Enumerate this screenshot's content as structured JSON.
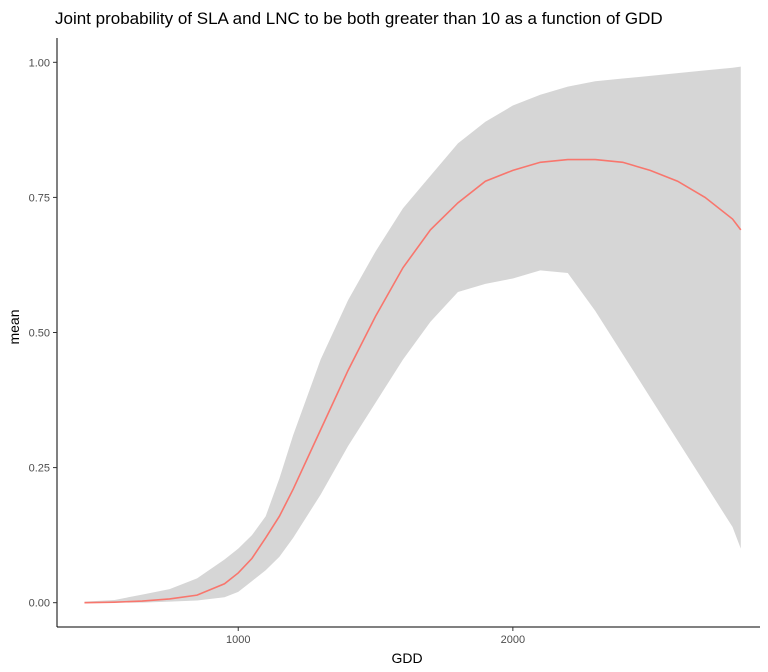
{
  "chart_data": {
    "type": "line",
    "title": "Joint probability of SLA and LNC to be both greater than 10 as a function of GDD",
    "xlabel": "GDD",
    "ylabel": "mean",
    "xlim": [
      340,
      2900
    ],
    "ylim": [
      -0.045,
      1.045
    ],
    "x_ticks": [
      1000,
      2000
    ],
    "x_tick_labels": [
      "1000",
      "2000"
    ],
    "y_ticks": [
      0,
      0.25,
      0.5,
      0.75,
      1.0
    ],
    "y_tick_labels": [
      "0.00",
      "0.25",
      "0.50",
      "0.75",
      "1.00"
    ],
    "grid": false,
    "legend": "none",
    "series": [
      {
        "x": [
          440,
          550,
          650,
          750,
          850,
          950,
          1000,
          1050,
          1100,
          1150,
          1200,
          1300,
          1400,
          1500,
          1600,
          1700,
          1800,
          1900,
          2000,
          2100,
          2200,
          2300,
          2400,
          2500,
          2600,
          2700,
          2800,
          2830
        ],
        "mean": [
          0.0,
          0.001,
          0.003,
          0.007,
          0.014,
          0.035,
          0.055,
          0.082,
          0.12,
          0.16,
          0.21,
          0.32,
          0.43,
          0.53,
          0.62,
          0.69,
          0.74,
          0.78,
          0.8,
          0.815,
          0.82,
          0.82,
          0.815,
          0.8,
          0.78,
          0.75,
          0.71,
          0.69
        ],
        "lower": [
          0.0,
          0.0,
          0.0,
          0.002,
          0.004,
          0.01,
          0.02,
          0.04,
          0.06,
          0.085,
          0.12,
          0.2,
          0.29,
          0.37,
          0.45,
          0.52,
          0.575,
          0.59,
          0.6,
          0.615,
          0.61,
          0.54,
          0.46,
          0.38,
          0.3,
          0.22,
          0.14,
          0.1
        ],
        "upper": [
          0.002,
          0.005,
          0.015,
          0.025,
          0.045,
          0.08,
          0.1,
          0.125,
          0.16,
          0.23,
          0.31,
          0.45,
          0.56,
          0.65,
          0.73,
          0.79,
          0.85,
          0.89,
          0.92,
          0.94,
          0.955,
          0.965,
          0.97,
          0.975,
          0.98,
          0.985,
          0.99,
          0.992
        ]
      }
    ],
    "line_color": "#F8766D",
    "ribbon_color": "#D6D6D6"
  }
}
